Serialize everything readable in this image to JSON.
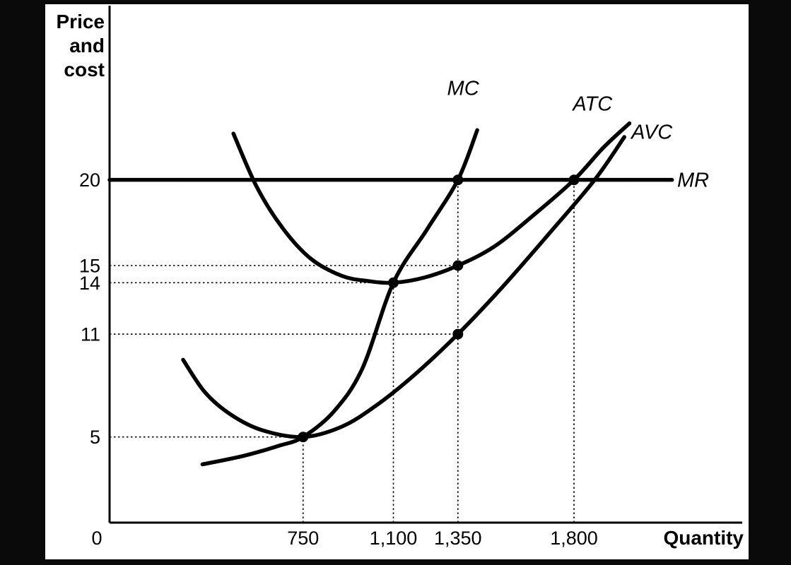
{
  "figure": {
    "frame_color": "#0a0a0a",
    "panel_color": "#ffffff"
  },
  "chart_data": {
    "type": "line",
    "title": "",
    "ylabel": "Price and cost",
    "ylabel_lines": [
      "Price",
      "and",
      "cost"
    ],
    "xlabel": "Quantity",
    "origin_label": "0",
    "xlim": [
      0,
      2452
    ],
    "ylim": [
      0,
      30
    ],
    "grid": false,
    "legend_position": "curve-end-labels",
    "colors": {
      "curves": "#000000",
      "panel": "#ffffff",
      "frame": "#0a0a0a",
      "guides": "#000000",
      "markers": "#000000"
    },
    "y_ticks": [
      {
        "value": 20,
        "label": "20"
      },
      {
        "value": 15,
        "label": "15"
      },
      {
        "value": 14,
        "label": "14"
      },
      {
        "value": 11,
        "label": "11"
      },
      {
        "value": 5,
        "label": "5"
      }
    ],
    "x_ticks": [
      {
        "value": 750,
        "label": "750"
      },
      {
        "value": 1100,
        "label": "1,100"
      },
      {
        "value": 1350,
        "label": "1,350"
      },
      {
        "value": 1800,
        "label": "1,800"
      }
    ],
    "series": [
      {
        "name": "MR",
        "label": "MR",
        "points": [
          [
            0,
            20
          ],
          [
            2180,
            20
          ]
        ],
        "label_pos": [
          2200,
          20
        ],
        "label_anchor": "start",
        "label_middle": true
      },
      {
        "name": "MC",
        "label": "MC",
        "points": [
          [
            360,
            3.4
          ],
          [
            520,
            3.9
          ],
          [
            660,
            4.5
          ],
          [
            750,
            5
          ],
          [
            870,
            6.5
          ],
          [
            980,
            9
          ],
          [
            1100,
            14
          ],
          [
            1230,
            17.1
          ],
          [
            1350,
            20
          ],
          [
            1425,
            22.9
          ]
        ],
        "label_pos": [
          1370,
          24.95
        ],
        "label_anchor": "middle"
      },
      {
        "name": "ATC",
        "label": "ATC",
        "points": [
          [
            480,
            22.7
          ],
          [
            570,
            19.6
          ],
          [
            670,
            17.2
          ],
          [
            780,
            15.4
          ],
          [
            900,
            14.4
          ],
          [
            1000,
            14.1
          ],
          [
            1100,
            14
          ],
          [
            1220,
            14.3
          ],
          [
            1350,
            15
          ],
          [
            1490,
            16.1
          ],
          [
            1640,
            17.9
          ],
          [
            1800,
            20
          ],
          [
            1915,
            21.9
          ],
          [
            2015,
            23.3
          ]
        ],
        "label_pos": [
          1872,
          24.05
        ],
        "label_anchor": "middle"
      },
      {
        "name": "AVC",
        "label": "AVC",
        "points": [
          [
            285,
            9.5
          ],
          [
            370,
            7.6
          ],
          [
            470,
            6.3
          ],
          [
            590,
            5.4
          ],
          [
            750,
            5
          ],
          [
            900,
            5.6
          ],
          [
            1030,
            6.8
          ],
          [
            1180,
            8.6
          ],
          [
            1350,
            11
          ],
          [
            1520,
            13.7
          ],
          [
            1700,
            16.8
          ],
          [
            1880,
            20
          ],
          [
            1995,
            22.5
          ]
        ],
        "label_pos": [
          2102,
          22.4
        ],
        "label_anchor": "middle"
      }
    ],
    "markers": [
      {
        "x": 750,
        "y": 5,
        "guide_h": true,
        "guide_v": true
      },
      {
        "x": 1100,
        "y": 14,
        "guide_h": true,
        "guide_v": true
      },
      {
        "x": 1350,
        "y": 11,
        "guide_h": true,
        "guide_v": false
      },
      {
        "x": 1350,
        "y": 15,
        "guide_h": true,
        "guide_v": false
      },
      {
        "x": 1350,
        "y": 20,
        "guide_h": false,
        "guide_v": true
      },
      {
        "x": 1800,
        "y": 20,
        "guide_h": false,
        "guide_v": true
      }
    ]
  }
}
